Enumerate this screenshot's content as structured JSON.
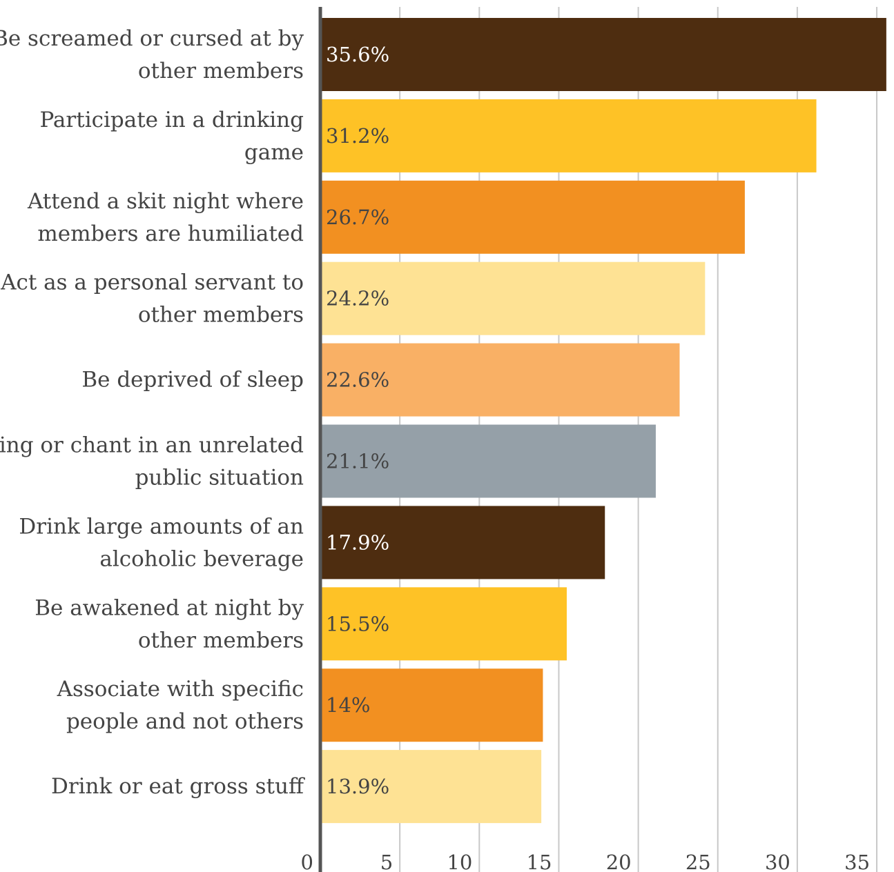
{
  "chart_data": {
    "type": "bar",
    "orientation": "horizontal",
    "categories": [
      [
        "Be screamed or cursed at by",
        "other members"
      ],
      [
        "Participate in a drinking",
        "game"
      ],
      [
        "Attend a skit night where",
        "members are humiliated"
      ],
      [
        "Act as a personal servant to",
        "other members"
      ],
      [
        "Be deprived of sleep"
      ],
      [
        "Sing or chant in an unrelated",
        "public situation"
      ],
      [
        "Drink large amounts of an",
        "alcoholic beverage"
      ],
      [
        "Be awakened at night by",
        "other members"
      ],
      [
        "Associate with specific",
        "people and not others"
      ],
      [
        "Drink or eat gross stuff"
      ]
    ],
    "values": [
      35.6,
      31.2,
      26.7,
      24.2,
      22.6,
      21.1,
      17.9,
      15.5,
      14,
      13.9
    ],
    "data_labels": [
      "35.6%",
      "31.2%",
      "26.7%",
      "24.2%",
      "22.6%",
      "21.1%",
      "17.9%",
      "15.5%",
      "14%",
      "13.9%"
    ],
    "colors": [
      "#4e2d10",
      "#fec226",
      "#f29021",
      "#fee294",
      "#f9b065",
      "#95a0a8",
      "#4e2d10",
      "#fec226",
      "#f29021",
      "#fee294"
    ],
    "label_colors": [
      "#ffffff",
      "#444444",
      "#444444",
      "#444444",
      "#444444",
      "#444444",
      "#ffffff",
      "#444444",
      "#444444",
      "#444444"
    ],
    "x_ticks": [
      0,
      5,
      10,
      15,
      20,
      25,
      30,
      35
    ],
    "xlim": [
      0,
      36
    ],
    "grid": true,
    "title": "",
    "xlabel": "",
    "ylabel": ""
  }
}
